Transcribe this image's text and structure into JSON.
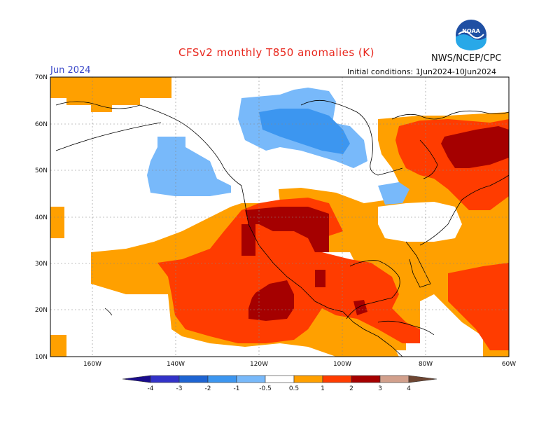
{
  "header": {
    "title": "CFSv2 monthly T850 anomalies (K)",
    "month": "Jun 2024",
    "agency": "NWS/NCEP/CPC",
    "initial_conditions": "Initial conditions: 1Jun2024-10Jun2024",
    "logo_text": "NOAA"
  },
  "map": {
    "lon_range": [
      -170,
      -60
    ],
    "lat_range": [
      10,
      70
    ],
    "grid": true,
    "lat_labels": [
      "70N",
      "60N",
      "50N",
      "40N",
      "30N",
      "20N",
      "10N"
    ],
    "lon_labels": [
      "160W",
      "140W",
      "120W",
      "100W",
      "80W",
      "60W"
    ]
  },
  "colorbar": {
    "labels": [
      "-4",
      "-3",
      "-2",
      "-1",
      "-0.5",
      "0.5",
      "1",
      "2",
      "3",
      "4"
    ],
    "colors": {
      "lt_-4": "#1a0c8c",
      "-4_-3": "#3232c8",
      "-3_-2": "#1e64d2",
      "-2_-1": "#3c96f0",
      "-1_-0.5": "#78b9fa",
      "-0.5_0.5": "#ffffff",
      "0.5_1": "#ffa000",
      "1_2": "#ff3c00",
      "2_3": "#a50000",
      "3_4": "#d2a08c",
      "gt_4": "#6e4632"
    }
  }
}
